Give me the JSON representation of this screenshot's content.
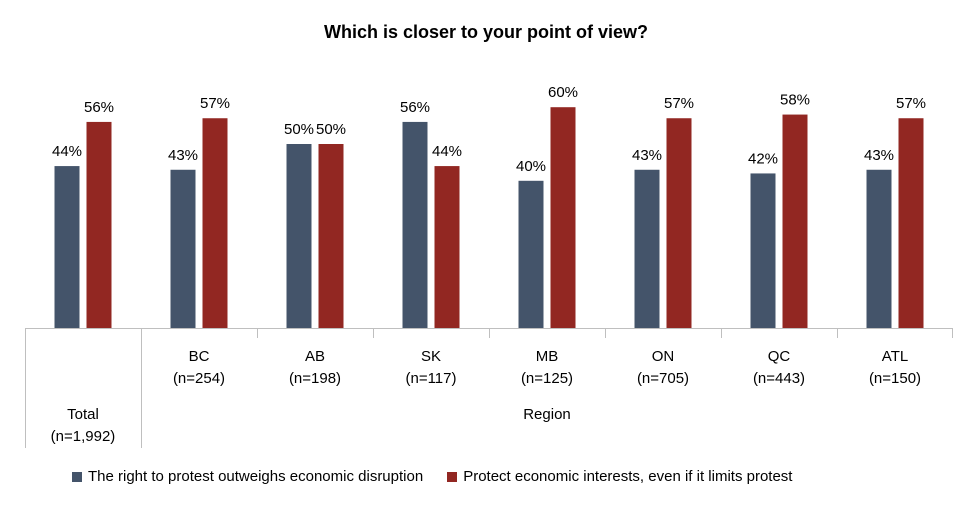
{
  "chart_data": {
    "type": "bar",
    "title": "Which is closer to your point of view?",
    "categories": [
      "Total",
      "BC",
      "AB",
      "SK",
      "MB",
      "ON",
      "QC",
      "ATL"
    ],
    "sample_sizes": [
      "(n=1,992)",
      "(n=254)",
      "(n=198)",
      "(n=117)",
      "(n=125)",
      "(n=705)",
      "(n=443)",
      "(n=150)"
    ],
    "group_label": "Region",
    "series": [
      {
        "name": "The right to protest outweighs economic disruption",
        "color": "#44546A",
        "values": [
          44,
          43,
          50,
          56,
          40,
          43,
          42,
          43
        ],
        "labels": [
          "44%",
          "43%",
          "50%",
          "56%",
          "40%",
          "43%",
          "42%",
          "43%"
        ]
      },
      {
        "name": "Protect economic interests, even if it limits protest",
        "color": "#922722",
        "values": [
          56,
          57,
          50,
          44,
          60,
          57,
          58,
          57
        ],
        "labels": [
          "56%",
          "57%",
          "50%",
          "44%",
          "60%",
          "57%",
          "58%",
          "57%"
        ]
      }
    ],
    "ylim": [
      0,
      60
    ],
    "grid": false,
    "legend_position": "bottom"
  }
}
